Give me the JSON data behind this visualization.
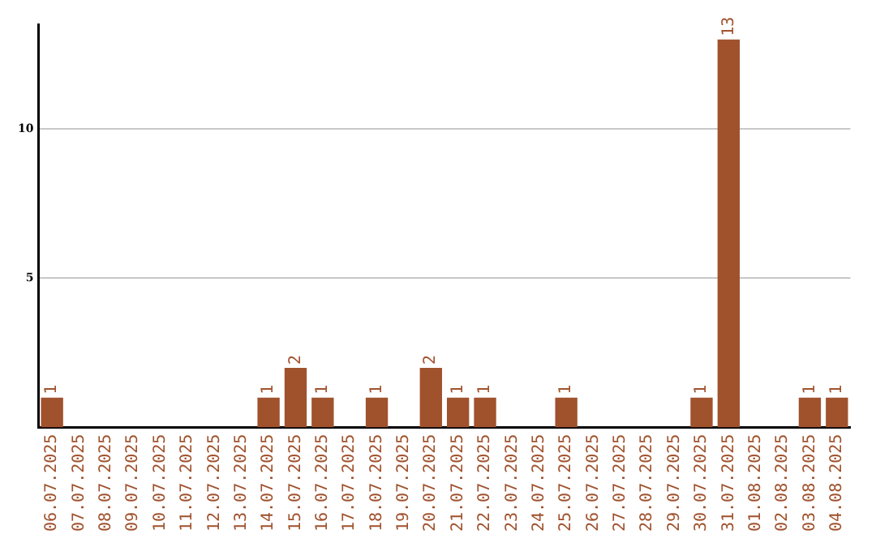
{
  "chart_data": {
    "type": "bar",
    "categories": [
      "06.07.2025",
      "07.07.2025",
      "08.07.2025",
      "09.07.2025",
      "10.07.2025",
      "11.07.2025",
      "12.07.2025",
      "13.07.2025",
      "14.07.2025",
      "15.07.2025",
      "16.07.2025",
      "17.07.2025",
      "18.07.2025",
      "19.07.2025",
      "20.07.2025",
      "21.07.2025",
      "22.07.2025",
      "23.07.2025",
      "24.07.2025",
      "25.07.2025",
      "26.07.2025",
      "27.07.2025",
      "28.07.2025",
      "29.07.2025",
      "30.07.2025",
      "31.07.2025",
      "01.08.2025",
      "02.08.2025",
      "03.08.2025",
      "04.08.2025"
    ],
    "values": [
      1,
      0,
      0,
      0,
      0,
      0,
      0,
      0,
      1,
      2,
      1,
      0,
      1,
      0,
      2,
      1,
      1,
      0,
      0,
      1,
      0,
      0,
      0,
      0,
      1,
      13,
      0,
      0,
      1,
      1
    ],
    "value_labels": [
      "1",
      null,
      null,
      null,
      null,
      null,
      null,
      null,
      "1",
      "2",
      "1",
      null,
      "1",
      null,
      "2",
      "1",
      "1",
      null,
      null,
      "1",
      null,
      null,
      null,
      null,
      "1",
      "13",
      null,
      null,
      "1",
      "1"
    ],
    "color": "#a0522d",
    "ylim": [
      0,
      13.5
    ],
    "yticks": [
      5,
      10
    ],
    "grid": "y",
    "legend": false
  }
}
